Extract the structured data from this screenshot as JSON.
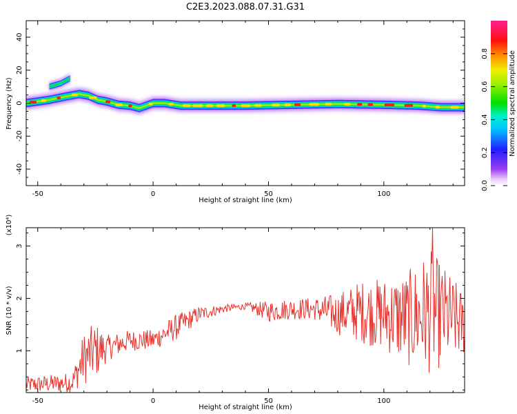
{
  "title": "C2E3.2023.088.07.31.G31",
  "colors": {
    "snr_line": "#e8302a",
    "axis": "#000000",
    "background": "#ffffff"
  },
  "chart_data": [
    {
      "type": "heatmap",
      "title": "C2E3.2023.088.07.31.G31",
      "xlabel": "Height of straight line (km)",
      "ylabel": "Frequency (Hz)",
      "xlim": [
        -55,
        135
      ],
      "ylim": [
        -50,
        50
      ],
      "xticks": [
        "-50",
        "0",
        "50",
        "100"
      ],
      "yticks": [
        "-40",
        "-20",
        "0",
        "20",
        "40"
      ],
      "colormap": "rainbow (purple-blue-cyan-green-yellow-red-magenta)",
      "colorbar": {
        "label": "Normalized spectral amplitude",
        "range": [
          0,
          1
        ],
        "ticks": [
          "0.0",
          "0.2",
          "0.4",
          "0.6",
          "0.8"
        ]
      },
      "main_ridge": [
        {
          "x": -55,
          "y": 0.0
        },
        {
          "x": -45,
          "y": 2.0
        },
        {
          "x": -38,
          "y": 4.0
        },
        {
          "x": -32,
          "y": 5.5
        },
        {
          "x": -28,
          "y": 4.5
        },
        {
          "x": -24,
          "y": 2.0
        },
        {
          "x": -20,
          "y": 1.0
        },
        {
          "x": -15,
          "y": -1.0
        },
        {
          "x": -10,
          "y": -1.5
        },
        {
          "x": -6,
          "y": -3.0
        },
        {
          "x": -3,
          "y": -1.5
        },
        {
          "x": 0,
          "y": 0.0
        },
        {
          "x": 5,
          "y": 0.0
        },
        {
          "x": 12,
          "y": -1.5
        },
        {
          "x": 20,
          "y": -1.5
        },
        {
          "x": 40,
          "y": -1.5
        },
        {
          "x": 60,
          "y": -1.0
        },
        {
          "x": 80,
          "y": -0.5
        },
        {
          "x": 100,
          "y": -1.0
        },
        {
          "x": 115,
          "y": -1.5
        },
        {
          "x": 125,
          "y": -2.5
        },
        {
          "x": 135,
          "y": -2.5
        }
      ],
      "secondary_feature": [
        {
          "x": -45,
          "y": 10.0
        },
        {
          "x": -40,
          "y": 12.0
        },
        {
          "x": -36,
          "y": 15.0
        }
      ]
    },
    {
      "type": "line",
      "xlabel": "Height of straight line (km)",
      "ylabel": "SNR (10 * v/v)",
      "y_multiplier": "(x10⁴)",
      "xlim": [
        -55,
        135
      ],
      "ylim": [
        0.2,
        3.35
      ],
      "xticks": [
        "-50",
        "0",
        "50",
        "100"
      ],
      "yticks": [
        "1",
        "2",
        "3"
      ],
      "series": [
        {
          "color": "#e8302a",
          "envelope": [
            {
              "x": -55,
              "mean": 0.35,
              "amp": 0.15
            },
            {
              "x": -40,
              "mean": 0.38,
              "amp": 0.18
            },
            {
              "x": -35,
              "mean": 0.4,
              "amp": 0.2
            },
            {
              "x": -30,
              "mean": 0.85,
              "amp": 0.5
            },
            {
              "x": -25,
              "mean": 1.0,
              "amp": 0.55
            },
            {
              "x": -20,
              "mean": 1.05,
              "amp": 0.25
            },
            {
              "x": -10,
              "mean": 1.2,
              "amp": 0.2
            },
            {
              "x": 0,
              "mean": 1.2,
              "amp": 0.2
            },
            {
              "x": 10,
              "mean": 1.45,
              "amp": 0.25
            },
            {
              "x": 20,
              "mean": 1.7,
              "amp": 0.15
            },
            {
              "x": 30,
              "mean": 1.8,
              "amp": 0.08
            },
            {
              "x": 40,
              "mean": 1.85,
              "amp": 0.06
            },
            {
              "x": 50,
              "mean": 1.75,
              "amp": 0.2
            },
            {
              "x": 60,
              "mean": 1.8,
              "amp": 0.2
            },
            {
              "x": 70,
              "mean": 1.8,
              "amp": 0.22
            },
            {
              "x": 80,
              "mean": 1.7,
              "amp": 0.4
            },
            {
              "x": 90,
              "mean": 1.75,
              "amp": 0.6
            },
            {
              "x": 100,
              "mean": 1.7,
              "amp": 0.7
            },
            {
              "x": 110,
              "mean": 1.6,
              "amp": 0.9
            },
            {
              "x": 120,
              "mean": 1.75,
              "amp": 1.2
            },
            {
              "x": 130,
              "mean": 1.6,
              "amp": 0.8
            },
            {
              "x": 135,
              "mean": 1.5,
              "amp": 0.6
            }
          ],
          "peak": {
            "x": 121,
            "y": 3.35
          }
        }
      ]
    }
  ]
}
